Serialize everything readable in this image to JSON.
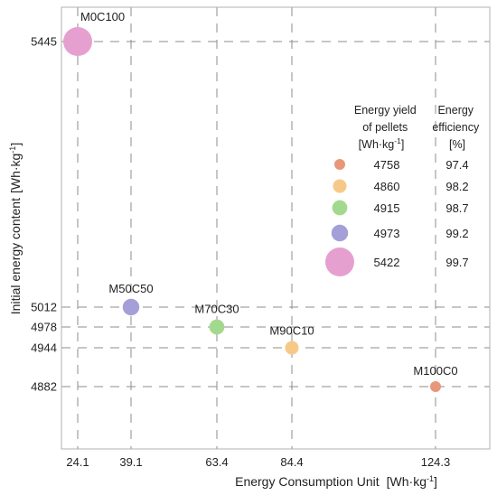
{
  "chart_data": {
    "type": "scatter",
    "title": "",
    "xlabel": "Energy Consumption Unit",
    "xlabel_unit": "[Wh·kg",
    "xlabel_unit_sup": "-1",
    "xlabel_unit_end": "]",
    "ylabel": "Initial energy content",
    "ylabel_unit": "[Wh·kg",
    "ylabel_unit_sup": "-1",
    "ylabel_unit_end": "]",
    "x_ticks": [
      24.1,
      39.1,
      63.4,
      84.4,
      124.3
    ],
    "y_ticks": [
      4882,
      4944,
      4978,
      5012,
      5445
    ],
    "grid": true,
    "grid_style": "dashed",
    "points": [
      {
        "label": "M0C100",
        "x": 24.1,
        "y": 5445,
        "energy_yield": 5422,
        "efficiency": 99.7,
        "color": "#e6a0d0"
      },
      {
        "label": "M50C50",
        "x": 39.1,
        "y": 5012,
        "energy_yield": 4973,
        "efficiency": 99.2,
        "color": "#a49fd6"
      },
      {
        "label": "M70C30",
        "x": 63.4,
        "y": 4978,
        "energy_yield": 4915,
        "efficiency": 98.7,
        "color": "#a3d98f"
      },
      {
        "label": "M90C10",
        "x": 84.4,
        "y": 4944,
        "energy_yield": 4860,
        "efficiency": 98.2,
        "color": "#f7c989"
      },
      {
        "label": "M100C0",
        "x": 124.3,
        "y": 4882,
        "energy_yield": 4758,
        "efficiency": 97.4,
        "color": "#e9977a"
      }
    ],
    "legend": {
      "placement": "right",
      "header_yield": [
        "Energy yield",
        "of pellets",
        "[Wh·kg"
      ],
      "header_yield_sup": "-1",
      "header_yield_end": "]",
      "header_efficiency": [
        "Energy",
        "efficiency",
        "[%]"
      ],
      "entries": [
        {
          "energy_yield": "4758",
          "efficiency": "97.4",
          "color": "#e9977a"
        },
        {
          "energy_yield": "4860",
          "efficiency": "98.2",
          "color": "#f7c989"
        },
        {
          "energy_yield": "4915",
          "efficiency": "98.7",
          "color": "#a3d98f"
        },
        {
          "energy_yield": "4973",
          "efficiency": "99.2",
          "color": "#a49fd6"
        },
        {
          "energy_yield": "5422",
          "efficiency": "99.7",
          "color": "#e6a0d0"
        }
      ]
    }
  }
}
